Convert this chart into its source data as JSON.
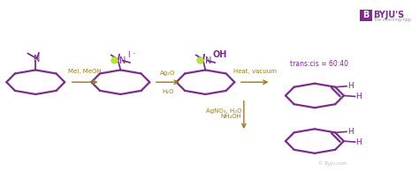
{
  "bg_color": "#ffffff",
  "purple": "#7B2D8B",
  "arrow_color": "#9B7B14",
  "fig_width": 4.74,
  "fig_height": 1.94,
  "dpi": 100,
  "s1x": 0.085,
  "s1y": 0.52,
  "s2x": 0.295,
  "s2y": 0.52,
  "s3x": 0.505,
  "s3y": 0.52,
  "s4x": 0.775,
  "s4y": 0.44,
  "s5x": 0.775,
  "s5y": 0.17,
  "r_oct": 0.072,
  "lw_ring": 1.6,
  "trans_cis": "trans:cis = 60:40",
  "watermark": "© Byju.com",
  "byju_text": "BYJU'S",
  "byju_sub": "The Learning App"
}
